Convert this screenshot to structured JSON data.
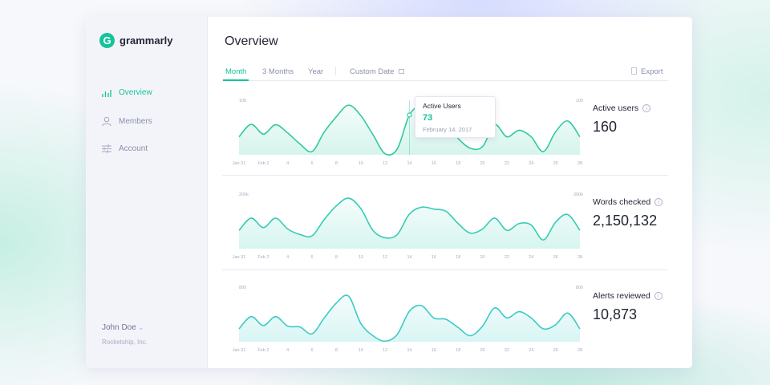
{
  "app": {
    "logo_text": "grammarly",
    "logo_glyph": "G"
  },
  "sidebar": {
    "items": [
      {
        "label": "Overview",
        "icon": "bar-chart-icon",
        "active": true
      },
      {
        "label": "Members",
        "icon": "user-icon"
      },
      {
        "label": "Account",
        "icon": "sliders-icon"
      }
    ],
    "user_name": "John Doe",
    "org": "Rocketship, Inc."
  },
  "header": {
    "title": "Overview"
  },
  "tabs": [
    {
      "label": "Month",
      "active": true
    },
    {
      "label": "3 Months"
    },
    {
      "label": "Year"
    },
    {
      "label": "Custom Date"
    }
  ],
  "export_label": "Export",
  "accent": "#15c39a",
  "tooltip": {
    "title": "Active Users",
    "value": "73",
    "date": "February 14, 2017"
  },
  "chart_data": [
    {
      "type": "area",
      "title": "Active users",
      "total": "160",
      "ymax_label": "100",
      "ylim": [
        0,
        100
      ],
      "x_ticks": [
        "Jan 31",
        "Feb 2",
        "4",
        "6",
        "8",
        "10",
        "12",
        "14",
        "16",
        "18",
        "20",
        "22",
        "24",
        "26",
        "28"
      ],
      "values": [
        33,
        56,
        38,
        55,
        40,
        20,
        6,
        42,
        70,
        91,
        72,
        37,
        2,
        11,
        73,
        90,
        80,
        60,
        30,
        12,
        15,
        55,
        33,
        45,
        33,
        6,
        42,
        62,
        33
      ],
      "color": "#2fcaa0"
    },
    {
      "type": "area",
      "title": "Words checked",
      "total": "2,150,132",
      "ymax_label": "200k",
      "ylim": [
        0,
        200
      ],
      "x_ticks": [
        "Jan 31",
        "Feb 2",
        "4",
        "6",
        "8",
        "10",
        "12",
        "14",
        "16",
        "18",
        "20",
        "22",
        "24",
        "26",
        "28"
      ],
      "values": [
        67,
        112,
        77,
        112,
        72,
        52,
        47,
        107,
        157,
        185,
        147,
        67,
        40,
        52,
        127,
        152,
        145,
        137,
        92,
        57,
        72,
        112,
        67,
        92,
        87,
        32,
        97,
        125,
        67
      ],
      "color": "#35cdb2"
    },
    {
      "type": "area",
      "title": "Alerts reviewed",
      "total": "10,873",
      "ymax_label": "800",
      "ylim": [
        0,
        800
      ],
      "x_ticks": [
        "Jan 31",
        "Feb 2",
        "4",
        "6",
        "8",
        "10",
        "12",
        "14",
        "16",
        "18",
        "20",
        "22",
        "24",
        "26",
        "28"
      ],
      "values": [
        188,
        368,
        236,
        368,
        228,
        216,
        116,
        348,
        568,
        668,
        268,
        88,
        8,
        108,
        448,
        528,
        348,
        328,
        208,
        88,
        228,
        496,
        348,
        440,
        348,
        188,
        248,
        420,
        188
      ],
      "color": "#3ccbc8"
    }
  ]
}
